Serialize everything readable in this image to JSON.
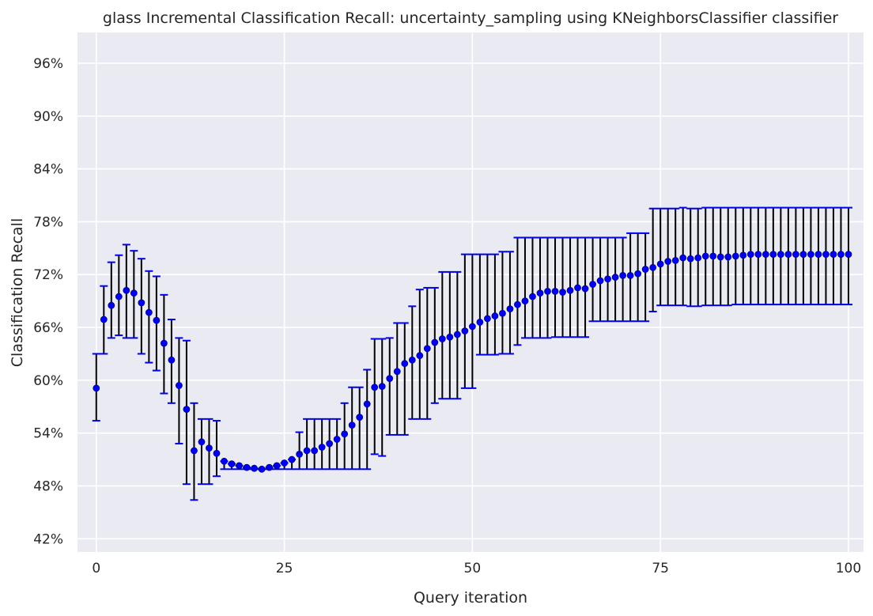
{
  "chart_data": {
    "type": "scatter",
    "title": "glass Incremental Classification Recall: uncertainty_sampling using KNeighborsClassifier classifier",
    "xlabel": "Query iteration",
    "ylabel": "Classification Recall",
    "xlim": [
      -2.5,
      102
    ],
    "ylim": [
      40.5,
      99.5
    ],
    "xticks": [
      0,
      25,
      50,
      75,
      100
    ],
    "xtick_labels": [
      "0",
      "25",
      "50",
      "75",
      "100"
    ],
    "yticks": [
      42,
      48,
      54,
      60,
      66,
      72,
      78,
      84,
      90,
      96
    ],
    "ytick_labels": [
      "42%",
      "48%",
      "54%",
      "60%",
      "66%",
      "72%",
      "78%",
      "84%",
      "90%",
      "96%"
    ],
    "grid": true,
    "legend": "none",
    "colors": {
      "background": "#eaeaf2",
      "grid": "#ffffff",
      "point": "#0000ee",
      "errorbar": "#000000",
      "cap": "#0000ee"
    },
    "series": [
      {
        "x": [
          0,
          1,
          2,
          3,
          4,
          5,
          6,
          7,
          8,
          9,
          10,
          11,
          12,
          13,
          14,
          15,
          16,
          17,
          18,
          19,
          20,
          21,
          22,
          23,
          24,
          25,
          26,
          27,
          28,
          29,
          30,
          31,
          32,
          33,
          34,
          35,
          36,
          37,
          38,
          39,
          40,
          41,
          42,
          43,
          44,
          45,
          46,
          47,
          48,
          49,
          50,
          51,
          52,
          53,
          54,
          55,
          56,
          57,
          58,
          59,
          60,
          61,
          62,
          63,
          64,
          65,
          66,
          67,
          68,
          69,
          70,
          71,
          72,
          73,
          74,
          75,
          76,
          77,
          78,
          79,
          80,
          81,
          82,
          83,
          84,
          85,
          86,
          87,
          88,
          89,
          90,
          91,
          92,
          93,
          94,
          95,
          96,
          97,
          98,
          99,
          100
        ],
        "y": [
          59.1,
          66.9,
          68.5,
          69.5,
          70.2,
          69.9,
          68.8,
          67.7,
          66.8,
          64.2,
          62.3,
          59.4,
          56.7,
          52.0,
          53.0,
          52.3,
          51.7,
          50.8,
          50.5,
          50.3,
          50.1,
          50.0,
          49.9,
          50.1,
          50.3,
          50.6,
          51.0,
          51.6,
          52.0,
          52.0,
          52.4,
          52.8,
          53.3,
          53.9,
          54.9,
          55.8,
          57.3,
          59.2,
          59.3,
          60.2,
          61.0,
          61.9,
          62.3,
          62.8,
          63.6,
          64.3,
          64.7,
          64.9,
          65.2,
          65.6,
          66.1,
          66.6,
          67.0,
          67.3,
          67.6,
          68.1,
          68.6,
          69.0,
          69.5,
          69.9,
          70.1,
          70.1,
          70.0,
          70.2,
          70.5,
          70.4,
          70.9,
          71.3,
          71.5,
          71.7,
          71.9,
          71.9,
          72.1,
          72.6,
          72.8,
          73.2,
          73.5,
          73.6,
          73.9,
          73.8,
          73.9,
          74.1,
          74.1,
          74.0,
          74.0,
          74.1,
          74.2,
          74.3,
          74.3,
          74.3,
          74.3,
          74.3,
          74.3,
          74.3,
          74.3,
          74.3,
          74.3,
          74.3,
          74.3,
          74.3,
          74.3
        ],
        "low": [
          55.4,
          63.0,
          64.8,
          65.1,
          64.8,
          64.8,
          63.0,
          62.0,
          61.1,
          58.5,
          57.4,
          52.8,
          48.2,
          46.4,
          48.2,
          48.2,
          49.1,
          49.9,
          49.9,
          49.9,
          49.9,
          49.9,
          49.9,
          49.9,
          49.9,
          49.9,
          49.9,
          49.9,
          49.9,
          49.9,
          49.9,
          49.9,
          49.9,
          49.9,
          49.9,
          49.9,
          49.9,
          51.6,
          51.4,
          53.8,
          53.8,
          53.8,
          55.6,
          55.6,
          55.6,
          57.4,
          57.9,
          57.9,
          57.9,
          59.1,
          59.1,
          62.9,
          62.9,
          62.9,
          63.0,
          63.0,
          64.0,
          64.8,
          64.8,
          64.8,
          64.8,
          64.9,
          64.9,
          64.9,
          64.9,
          64.9,
          66.7,
          66.7,
          66.7,
          66.7,
          66.7,
          66.7,
          66.7,
          66.7,
          67.8,
          68.5,
          68.5,
          68.5,
          68.5,
          68.4,
          68.4,
          68.5,
          68.5,
          68.5,
          68.5,
          68.6,
          68.6,
          68.6,
          68.6,
          68.6,
          68.6,
          68.6,
          68.6,
          68.6,
          68.6,
          68.6,
          68.6,
          68.6,
          68.6,
          68.6,
          68.6
        ],
        "high": [
          63.0,
          70.7,
          73.4,
          74.2,
          75.4,
          74.7,
          73.8,
          72.4,
          71.8,
          69.7,
          66.9,
          64.8,
          64.5,
          57.4,
          55.6,
          55.6,
          55.4,
          50.8,
          50.5,
          50.3,
          50.1,
          50.0,
          49.9,
          50.1,
          50.3,
          50.6,
          51.0,
          54.1,
          55.6,
          55.6,
          55.6,
          55.6,
          55.6,
          57.4,
          59.2,
          59.2,
          61.2,
          64.7,
          64.7,
          64.8,
          66.5,
          66.5,
          68.4,
          70.3,
          70.5,
          70.5,
          72.3,
          72.3,
          72.3,
          74.3,
          74.3,
          74.3,
          74.3,
          74.3,
          74.6,
          74.6,
          76.2,
          76.2,
          76.2,
          76.2,
          76.2,
          76.2,
          76.2,
          76.2,
          76.2,
          76.2,
          76.2,
          76.2,
          76.2,
          76.2,
          76.2,
          76.7,
          76.7,
          76.7,
          79.5,
          79.5,
          79.5,
          79.5,
          79.6,
          79.5,
          79.5,
          79.6,
          79.6,
          79.6,
          79.6,
          79.6,
          79.6,
          79.6,
          79.6,
          79.6,
          79.6,
          79.6,
          79.6,
          79.6,
          79.6,
          79.6,
          79.6,
          79.6,
          79.6,
          79.6,
          79.6
        ]
      }
    ]
  }
}
